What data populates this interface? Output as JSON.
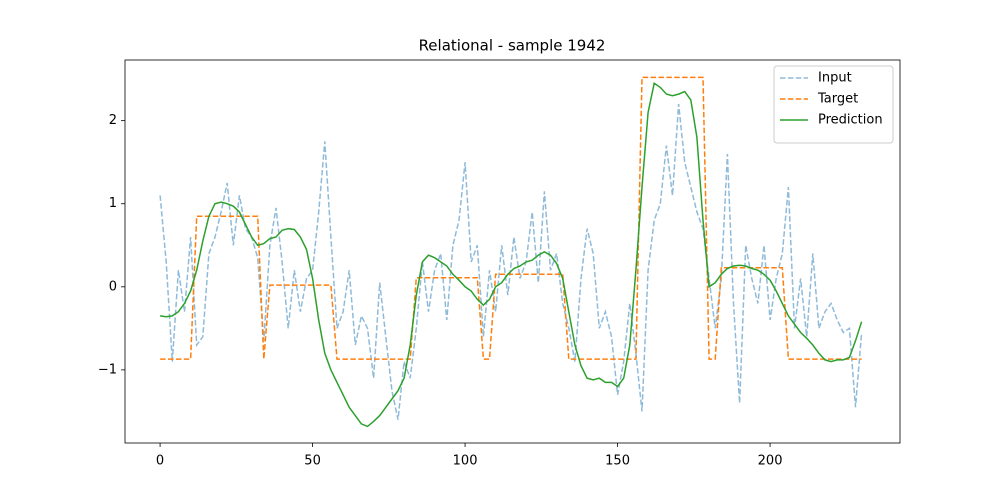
{
  "chart_data": {
    "type": "line",
    "title": "Relational - sample 1942",
    "x": [
      0,
      2,
      4,
      6,
      8,
      10,
      12,
      14,
      16,
      18,
      20,
      22,
      24,
      26,
      28,
      30,
      32,
      34,
      36,
      38,
      40,
      42,
      44,
      46,
      48,
      50,
      52,
      54,
      56,
      58,
      60,
      62,
      64,
      66,
      68,
      70,
      72,
      74,
      76,
      78,
      80,
      82,
      84,
      86,
      88,
      90,
      92,
      94,
      96,
      98,
      100,
      102,
      104,
      106,
      108,
      110,
      112,
      114,
      116,
      118,
      120,
      122,
      124,
      126,
      128,
      130,
      132,
      134,
      136,
      138,
      140,
      142,
      144,
      146,
      148,
      150,
      152,
      154,
      156,
      158,
      160,
      162,
      164,
      166,
      168,
      170,
      172,
      174,
      176,
      178,
      180,
      182,
      184,
      186,
      188,
      190,
      192,
      194,
      196,
      198,
      200,
      202,
      204,
      206,
      208,
      210,
      212,
      214,
      216,
      218,
      220,
      222,
      224,
      226,
      228,
      230
    ],
    "series": [
      {
        "name": "Input",
        "color": "#1f77b4",
        "alpha": 0.5,
        "linestyle": "dashed",
        "values": [
          1.1,
          0.3,
          -0.9,
          0.2,
          -0.3,
          0.6,
          -0.7,
          -0.6,
          0.4,
          0.6,
          0.9,
          1.25,
          0.5,
          1.1,
          0.7,
          0.6,
          0.35,
          -0.65,
          0.5,
          0.95,
          0.3,
          -0.5,
          0.2,
          -0.3,
          0.1,
          0.2,
          0.9,
          1.75,
          0.6,
          -0.5,
          -0.3,
          0.2,
          -0.7,
          -0.35,
          -0.5,
          -1.1,
          0.05,
          -0.6,
          -1.25,
          -1.6,
          -0.9,
          -1.1,
          -0.5,
          0.3,
          -0.3,
          0.2,
          0.4,
          -0.4,
          0.5,
          0.8,
          1.5,
          0.3,
          0.5,
          -0.6,
          0.2,
          -0.3,
          0.5,
          -0.1,
          0.6,
          0.1,
          0.3,
          0.9,
          0.05,
          1.15,
          0.2,
          0.4,
          -0.2,
          -0.5,
          -0.9,
          0.1,
          0.7,
          0.4,
          -0.5,
          -0.3,
          -0.6,
          -1.3,
          -0.9,
          -0.2,
          -0.8,
          -1.5,
          0.2,
          0.8,
          1.0,
          1.7,
          1.1,
          2.2,
          1.5,
          1.2,
          0.9,
          0.7,
          0.1,
          -0.5,
          0.1,
          1.6,
          -0.2,
          -1.4,
          0.5,
          0.1,
          -0.2,
          0.5,
          -0.4,
          0.1,
          0.4,
          1.2,
          -0.5,
          0.1,
          -0.6,
          0.4,
          -0.5,
          -0.3,
          -0.2,
          -0.4,
          -0.55,
          -0.5,
          -1.45,
          -0.55
        ]
      },
      {
        "name": "Target",
        "color": "#ff7f0e",
        "alpha": 1,
        "linestyle": "dashed",
        "values": [
          -0.87,
          -0.87,
          -0.87,
          -0.87,
          -0.87,
          -0.87,
          0.85,
          0.85,
          0.85,
          0.85,
          0.85,
          0.85,
          0.85,
          0.85,
          0.85,
          0.85,
          0.85,
          -0.87,
          0.02,
          0.02,
          0.02,
          0.02,
          0.02,
          0.02,
          0.02,
          0.02,
          0.02,
          0.02,
          0.02,
          -0.87,
          -0.87,
          -0.87,
          -0.87,
          -0.87,
          -0.87,
          -0.87,
          -0.87,
          -0.87,
          -0.87,
          -0.87,
          -0.87,
          -0.87,
          0.11,
          0.11,
          0.11,
          0.11,
          0.11,
          0.11,
          0.11,
          0.11,
          0.11,
          0.11,
          0.11,
          -0.87,
          -0.87,
          0.15,
          0.15,
          0.15,
          0.15,
          0.15,
          0.15,
          0.15,
          0.15,
          0.15,
          0.15,
          0.15,
          0.15,
          -0.87,
          -0.87,
          -0.87,
          -0.87,
          -0.87,
          -0.87,
          -0.87,
          -0.87,
          -0.87,
          -0.87,
          -0.87,
          -0.87,
          2.52,
          2.52,
          2.52,
          2.52,
          2.52,
          2.52,
          2.52,
          2.52,
          2.52,
          2.52,
          2.52,
          -0.87,
          -0.87,
          0.23,
          0.23,
          0.23,
          0.23,
          0.23,
          0.23,
          0.23,
          0.23,
          0.23,
          0.23,
          0.23,
          -0.87,
          -0.87,
          -0.87,
          -0.87,
          -0.87,
          -0.87,
          -0.87,
          -0.87,
          -0.87,
          -0.87,
          -0.87,
          -0.87,
          -0.87
        ]
      },
      {
        "name": "Prediction",
        "color": "#2ca02c",
        "alpha": 1,
        "linestyle": "solid",
        "values": [
          -0.35,
          -0.36,
          -0.35,
          -0.3,
          -0.2,
          -0.05,
          0.2,
          0.55,
          0.85,
          1.0,
          1.02,
          1.0,
          0.97,
          0.9,
          0.75,
          0.6,
          0.5,
          0.52,
          0.58,
          0.6,
          0.68,
          0.7,
          0.69,
          0.6,
          0.45,
          0.1,
          -0.4,
          -0.8,
          -1.0,
          -1.15,
          -1.3,
          -1.45,
          -1.55,
          -1.65,
          -1.68,
          -1.62,
          -1.55,
          -1.45,
          -1.35,
          -1.25,
          -1.1,
          -0.7,
          -0.1,
          0.3,
          0.38,
          0.35,
          0.3,
          0.25,
          0.15,
          0.08,
          0.0,
          -0.05,
          -0.15,
          -0.22,
          -0.15,
          0.0,
          0.05,
          0.15,
          0.22,
          0.25,
          0.3,
          0.32,
          0.38,
          0.42,
          0.38,
          0.28,
          0.1,
          -0.3,
          -0.7,
          -0.95,
          -1.1,
          -1.12,
          -1.1,
          -1.15,
          -1.15,
          -1.2,
          -1.1,
          -0.7,
          0.2,
          1.2,
          2.1,
          2.45,
          2.4,
          2.32,
          2.3,
          2.32,
          2.35,
          2.25,
          1.8,
          0.8,
          0.0,
          0.05,
          0.15,
          0.22,
          0.25,
          0.26,
          0.25,
          0.22,
          0.2,
          0.15,
          0.08,
          -0.05,
          -0.2,
          -0.35,
          -0.45,
          -0.55,
          -0.62,
          -0.7,
          -0.8,
          -0.88,
          -0.9,
          -0.88,
          -0.88,
          -0.85,
          -0.65,
          -0.42
        ]
      }
    ],
    "xlim": [
      -11.5,
      242.6
    ],
    "ylim": [
      -1.88,
      2.73
    ],
    "xticks": [
      0,
      50,
      100,
      150,
      200
    ],
    "yticks": [
      {
        "value": -1,
        "label": "−1"
      },
      0,
      1,
      2
    ],
    "grid": false,
    "legend": "upper right"
  }
}
